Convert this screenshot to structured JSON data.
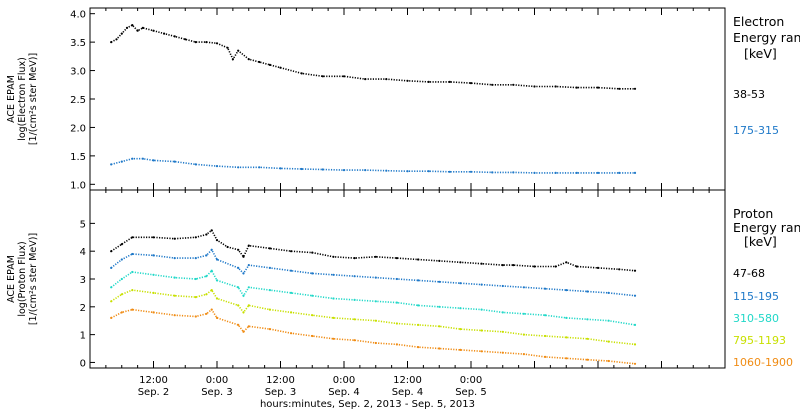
{
  "chart_data": [
    {
      "type": "scatter",
      "ylabel_lines": [
        "ACE EPAM",
        "log(Electron Flux)",
        "[1/(cm²s ster MeV)]"
      ],
      "ylim": [
        0.9,
        4.1
      ],
      "yticks": [
        "1.0",
        "1.5",
        "2.0",
        "2.5",
        "3.0",
        "3.5",
        "4.0"
      ],
      "legend_title_lines": [
        "Electron",
        "Energy ranges",
        "[keV]"
      ],
      "series": [
        {
          "name": "38-53",
          "color": "#000000",
          "x": [
            4,
            5,
            6,
            7,
            8,
            9,
            10,
            12,
            14,
            16,
            18,
            20,
            22,
            24,
            26,
            27,
            28,
            30,
            32,
            34,
            36,
            40,
            44,
            48,
            52,
            56,
            60,
            64,
            68,
            72,
            76,
            80,
            84,
            88,
            92,
            96,
            100,
            103
          ],
          "y": [
            3.5,
            3.55,
            3.65,
            3.75,
            3.8,
            3.7,
            3.75,
            3.7,
            3.65,
            3.6,
            3.55,
            3.5,
            3.5,
            3.48,
            3.4,
            3.2,
            3.35,
            3.2,
            3.15,
            3.1,
            3.05,
            2.95,
            2.9,
            2.9,
            2.85,
            2.85,
            2.82,
            2.8,
            2.8,
            2.78,
            2.75,
            2.75,
            2.72,
            2.72,
            2.7,
            2.7,
            2.68,
            2.68
          ]
        },
        {
          "name": "175-315",
          "color": "#1e78c8",
          "x": [
            4,
            6,
            8,
            10,
            12,
            16,
            20,
            24,
            28,
            32,
            36,
            40,
            44,
            48,
            52,
            56,
            60,
            64,
            68,
            72,
            76,
            80,
            84,
            88,
            92,
            96,
            100,
            103
          ],
          "y": [
            1.35,
            1.4,
            1.45,
            1.45,
            1.42,
            1.4,
            1.35,
            1.32,
            1.3,
            1.3,
            1.28,
            1.27,
            1.26,
            1.25,
            1.25,
            1.24,
            1.23,
            1.23,
            1.22,
            1.22,
            1.21,
            1.21,
            1.2,
            1.2,
            1.2,
            1.2,
            1.2,
            1.2
          ]
        }
      ]
    },
    {
      "type": "scatter",
      "ylabel_lines": [
        "ACE EPAM",
        "log(Proton Flux)",
        "[1/(cm²s ster MeV)]"
      ],
      "ylim": [
        -0.2,
        6.2
      ],
      "yticks": [
        "0",
        "1",
        "2",
        "3",
        "4",
        "5"
      ],
      "legend_title_lines": [
        "Proton",
        "Energy ranges",
        "[keV]"
      ],
      "series": [
        {
          "name": "47-68",
          "color": "#000000",
          "x": [
            4,
            6,
            8,
            12,
            16,
            20,
            22,
            23,
            24,
            26,
            28,
            29,
            30,
            34,
            38,
            42,
            46,
            50,
            54,
            58,
            62,
            66,
            70,
            74,
            78,
            80,
            84,
            88,
            90,
            92,
            96,
            100,
            103
          ],
          "y": [
            4.0,
            4.25,
            4.5,
            4.5,
            4.45,
            4.5,
            4.6,
            4.75,
            4.4,
            4.15,
            4.05,
            3.8,
            4.2,
            4.1,
            4.0,
            3.95,
            3.8,
            3.75,
            3.8,
            3.75,
            3.7,
            3.65,
            3.6,
            3.55,
            3.5,
            3.5,
            3.45,
            3.45,
            3.6,
            3.45,
            3.4,
            3.35,
            3.3
          ]
        },
        {
          "name": "115-195",
          "color": "#1e78c8",
          "x": [
            4,
            6,
            8,
            12,
            16,
            20,
            22,
            23,
            24,
            28,
            29,
            30,
            34,
            38,
            42,
            46,
            50,
            54,
            58,
            62,
            66,
            70,
            74,
            78,
            82,
            86,
            90,
            94,
            98,
            103
          ],
          "y": [
            3.4,
            3.7,
            3.9,
            3.85,
            3.75,
            3.75,
            3.85,
            4.05,
            3.7,
            3.4,
            3.2,
            3.5,
            3.4,
            3.3,
            3.2,
            3.15,
            3.1,
            3.05,
            3.0,
            2.95,
            2.9,
            2.85,
            2.8,
            2.75,
            2.7,
            2.65,
            2.6,
            2.55,
            2.5,
            2.4
          ]
        },
        {
          "name": "310-580",
          "color": "#20d8c8",
          "x": [
            4,
            6,
            8,
            12,
            16,
            20,
            22,
            23,
            24,
            28,
            29,
            30,
            34,
            38,
            42,
            46,
            50,
            54,
            58,
            62,
            66,
            70,
            74,
            78,
            82,
            86,
            90,
            94,
            98,
            103
          ],
          "y": [
            2.7,
            3.0,
            3.25,
            3.15,
            3.05,
            3.0,
            3.1,
            3.3,
            2.95,
            2.7,
            2.4,
            2.7,
            2.6,
            2.5,
            2.4,
            2.3,
            2.25,
            2.2,
            2.15,
            2.05,
            2.0,
            1.95,
            1.9,
            1.8,
            1.75,
            1.7,
            1.6,
            1.55,
            1.5,
            1.35
          ]
        },
        {
          "name": "795-1193",
          "color": "#c8e000",
          "x": [
            4,
            6,
            8,
            12,
            16,
            20,
            22,
            23,
            24,
            28,
            29,
            30,
            34,
            38,
            42,
            46,
            50,
            54,
            58,
            62,
            66,
            70,
            74,
            78,
            82,
            86,
            90,
            94,
            98,
            103
          ],
          "y": [
            2.2,
            2.45,
            2.6,
            2.5,
            2.4,
            2.35,
            2.45,
            2.6,
            2.3,
            2.05,
            1.8,
            2.05,
            1.9,
            1.8,
            1.7,
            1.6,
            1.55,
            1.5,
            1.4,
            1.35,
            1.3,
            1.2,
            1.15,
            1.1,
            1.0,
            0.95,
            0.9,
            0.85,
            0.75,
            0.65
          ]
        },
        {
          "name": "1060-1900",
          "color": "#f08c14",
          "x": [
            4,
            6,
            8,
            12,
            16,
            20,
            22,
            23,
            24,
            28,
            29,
            30,
            34,
            38,
            42,
            46,
            50,
            54,
            58,
            62,
            66,
            70,
            74,
            78,
            82,
            86,
            90,
            94,
            98,
            103
          ],
          "y": [
            1.6,
            1.8,
            1.9,
            1.8,
            1.7,
            1.65,
            1.75,
            1.9,
            1.6,
            1.35,
            1.1,
            1.3,
            1.2,
            1.05,
            0.95,
            0.85,
            0.8,
            0.7,
            0.65,
            0.55,
            0.5,
            0.45,
            0.4,
            0.35,
            0.3,
            0.2,
            0.15,
            0.1,
            0.05,
            -0.05
          ]
        }
      ]
    }
  ],
  "xaxis": {
    "xlim": [
      0,
      120
    ],
    "ticks": [
      {
        "x": 12,
        "line1": "12:00",
        "line2": "Sep. 2"
      },
      {
        "x": 24,
        "line1": "0:00",
        "line2": "Sep. 3"
      },
      {
        "x": 36,
        "line1": "12:00",
        "line2": "Sep. 3"
      },
      {
        "x": 48,
        "line1": "0:00",
        "line2": "Sep. 4"
      },
      {
        "x": 60,
        "line1": "12:00",
        "line2": "Sep. 4"
      },
      {
        "x": 72,
        "line1": "0:00",
        "line2": "Sep. 5"
      }
    ],
    "label": "hours:minutes, Sep.  2, 2013 - Sep.  5, 2013"
  }
}
